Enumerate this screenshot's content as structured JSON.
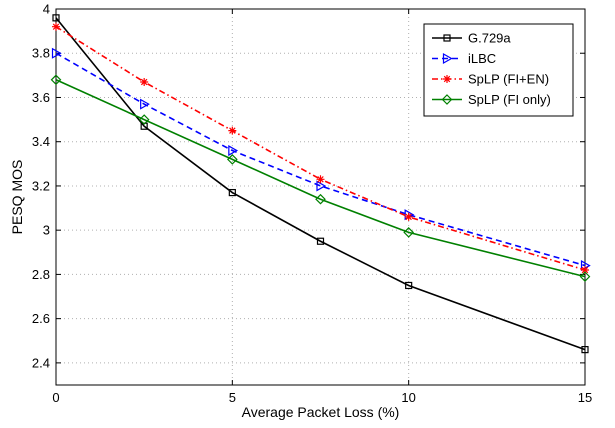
{
  "chart_data": {
    "type": "line",
    "xlabel": "Average Packet Loss (%)",
    "ylabel": "PESQ MOS",
    "xlim": [
      0,
      15
    ],
    "ylim": [
      2.3,
      4.0
    ],
    "xticks": [
      0,
      5,
      10,
      15
    ],
    "xtick_labels": [
      "0",
      "5",
      "10",
      "15"
    ],
    "yticks": [
      2.4,
      2.6,
      2.8,
      3.0,
      3.2,
      3.4,
      3.6,
      3.8,
      4.0
    ],
    "ytick_labels": [
      "2.4",
      "2.6",
      "2.8",
      "3",
      "3.2",
      "3.4",
      "3.6",
      "3.8",
      "4"
    ],
    "grid": true,
    "legend_position": "top-right",
    "x": [
      0,
      2.5,
      5,
      7.5,
      10,
      15
    ],
    "series": [
      {
        "name": "G.729a",
        "values": [
          3.96,
          3.47,
          3.17,
          2.95,
          2.75,
          2.46
        ],
        "color": "#000000",
        "dash": "solid",
        "marker": "square"
      },
      {
        "name": "iLBC",
        "values": [
          3.8,
          3.57,
          3.36,
          3.2,
          3.07,
          2.84
        ],
        "color": "#0000ff",
        "dash": "dashed",
        "marker": "triangle-right"
      },
      {
        "name": "SpLP (FI+EN)",
        "values": [
          3.92,
          3.67,
          3.45,
          3.23,
          3.06,
          2.82
        ],
        "color": "#ff0000",
        "dash": "dashdot",
        "marker": "star"
      },
      {
        "name": "SpLP (FI only)",
        "values": [
          3.68,
          3.5,
          3.32,
          3.14,
          2.99,
          2.79
        ],
        "color": "#008000",
        "dash": "solid",
        "marker": "diamond"
      }
    ]
  }
}
